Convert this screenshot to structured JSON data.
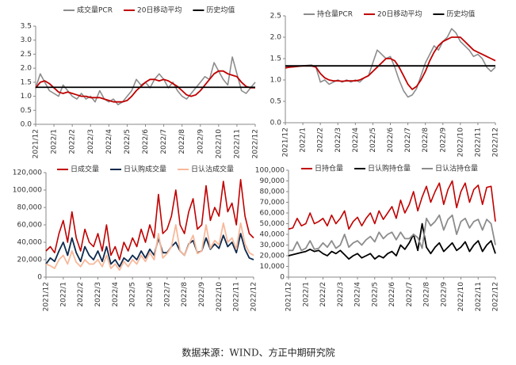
{
  "chart_data": [
    {
      "type": "line",
      "categories": [
        "2021/12",
        null,
        null,
        null,
        "2022/1",
        null,
        null,
        null,
        "2022/2",
        null,
        null,
        null,
        "2022/3",
        null,
        null,
        null,
        "2022/4",
        null,
        null,
        null,
        "2022/5",
        null,
        null,
        null,
        "2022/6",
        null,
        null,
        null,
        "2022/7",
        null,
        null,
        null,
        "2022/8",
        null,
        null,
        null,
        "2022/9",
        null,
        null,
        null,
        "2022/10",
        null,
        null,
        null,
        "2022/11",
        null,
        null,
        null,
        "2022/12"
      ],
      "series": [
        {
          "name": "成交量PCR",
          "color": "#8c8c8c",
          "values": [
            1.3,
            1.8,
            1.5,
            1.2,
            1.1,
            1.0,
            1.4,
            1.2,
            1.0,
            0.9,
            1.1,
            0.9,
            1.0,
            0.8,
            1.2,
            0.9,
            0.8,
            0.9,
            0.7,
            0.8,
            1.0,
            1.2,
            1.6,
            1.4,
            1.5,
            1.3,
            1.6,
            1.8,
            1.6,
            1.3,
            1.5,
            1.2,
            1.0,
            0.9,
            1.1,
            1.3,
            1.5,
            1.7,
            1.6,
            2.2,
            1.9,
            1.6,
            1.4,
            2.4,
            1.8,
            1.2,
            1.1,
            1.3,
            1.5
          ]
        },
        {
          "name": "20日移动平均",
          "color": "#c00000",
          "values": [
            1.3,
            1.5,
            1.55,
            1.45,
            1.3,
            1.15,
            1.1,
            1.15,
            1.1,
            1.05,
            1.0,
            1.0,
            0.95,
            0.95,
            0.95,
            0.9,
            0.85,
            0.8,
            0.8,
            0.8,
            0.85,
            1.0,
            1.2,
            1.35,
            1.5,
            1.6,
            1.6,
            1.55,
            1.6,
            1.55,
            1.45,
            1.35,
            1.2,
            1.05,
            1.0,
            1.05,
            1.2,
            1.4,
            1.6,
            1.8,
            1.9,
            1.9,
            1.8,
            1.75,
            1.7,
            1.5,
            1.35,
            1.3,
            1.3
          ]
        },
        {
          "name": "历史均值",
          "color": "#000000",
          "value": 1.32
        }
      ],
      "ylim": [
        0,
        3.5
      ],
      "yticks": [
        {
          "value": 0,
          "label": "0.0"
        },
        0.5,
        {
          "value": 1,
          "label": "1.0"
        },
        1.5,
        {
          "value": 2,
          "label": "2.0"
        },
        2.5,
        {
          "value": 3,
          "label": "3.0"
        },
        3.5
      ]
    },
    {
      "type": "line",
      "categories": [
        "2021/12",
        null,
        null,
        null,
        "2022/1",
        null,
        null,
        null,
        "2022/2",
        null,
        null,
        null,
        "2022/3",
        null,
        null,
        null,
        "2022/4",
        null,
        null,
        null,
        "2022/5",
        null,
        null,
        null,
        "2022/6",
        null,
        null,
        null,
        "2022/7",
        null,
        null,
        null,
        "2022/8",
        null,
        null,
        null,
        "2022/9",
        null,
        null,
        null,
        "2022/10",
        null,
        null,
        null,
        "2022/11",
        null,
        null,
        null,
        "2022/12"
      ],
      "series": [
        {
          "name": "持仓量PCR",
          "color": "#8c8c8c",
          "values": [
            1.3,
            1.3,
            1.32,
            1.33,
            1.33,
            1.34,
            1.35,
            1.3,
            0.95,
            1.0,
            0.9,
            0.95,
            1.0,
            0.95,
            1.0,
            0.95,
            1.0,
            0.95,
            1.05,
            1.1,
            1.4,
            1.7,
            1.6,
            1.5,
            1.55,
            1.3,
            1.0,
            0.75,
            0.6,
            0.65,
            0.8,
            1.1,
            1.4,
            1.6,
            1.8,
            1.7,
            1.9,
            2.0,
            2.2,
            2.1,
            1.9,
            1.8,
            1.7,
            1.55,
            1.6,
            1.5,
            1.3,
            1.2,
            1.3
          ]
        },
        {
          "name": "20日移动平均",
          "color": "#c00000",
          "values": [
            1.28,
            1.3,
            1.31,
            1.32,
            1.33,
            1.33,
            1.33,
            1.3,
            1.15,
            1.05,
            1.0,
            0.98,
            0.98,
            0.97,
            0.98,
            0.98,
            0.98,
            1.0,
            1.05,
            1.1,
            1.2,
            1.3,
            1.4,
            1.5,
            1.5,
            1.45,
            1.3,
            1.1,
            0.9,
            0.78,
            0.85,
            1.0,
            1.2,
            1.45,
            1.65,
            1.8,
            1.9,
            1.95,
            2.0,
            2.0,
            2.0,
            1.9,
            1.8,
            1.7,
            1.65,
            1.6,
            1.55,
            1.5,
            1.45
          ]
        },
        {
          "name": "历史均值",
          "color": "#000000",
          "value": 1.33
        }
      ],
      "ylim": [
        0,
        2.5
      ],
      "yticks": [
        {
          "value": 0,
          "label": "0.0"
        },
        0.5,
        {
          "value": 1,
          "label": "1.0"
        },
        1.5,
        {
          "value": 2,
          "label": "2.0"
        },
        2.5
      ]
    },
    {
      "type": "line",
      "categories": [
        "2021/12",
        null,
        null,
        null,
        "2022/1",
        null,
        null,
        null,
        "2022/2",
        null,
        null,
        null,
        "2022/3",
        null,
        null,
        null,
        "2022/4",
        null,
        null,
        null,
        "2022/5",
        null,
        null,
        null,
        "2022/6",
        null,
        null,
        null,
        "2022/7",
        null,
        null,
        null,
        "2022/8",
        null,
        null,
        null,
        "2022/9",
        null,
        null,
        null,
        "2022/10",
        null,
        null,
        null,
        "2022/11",
        null,
        null,
        null,
        "2022/12"
      ],
      "series": [
        {
          "name": "日成交量",
          "color": "#c00000",
          "values": [
            30000,
            35000,
            28000,
            50000,
            65000,
            40000,
            75000,
            45000,
            30000,
            55000,
            40000,
            35000,
            50000,
            30000,
            60000,
            25000,
            35000,
            20000,
            40000,
            30000,
            45000,
            35000,
            55000,
            40000,
            60000,
            45000,
            95000,
            50000,
            55000,
            70000,
            100000,
            60000,
            50000,
            75000,
            90000,
            55000,
            60000,
            105000,
            65000,
            80000,
            70000,
            110000,
            75000,
            85000,
            60000,
            112000,
            70000,
            50000,
            45000
          ]
        },
        {
          "name": "日认购成交量",
          "color": "#0d2a4e",
          "values": [
            15000,
            22000,
            18000,
            30000,
            40000,
            25000,
            45000,
            28000,
            18000,
            35000,
            25000,
            20000,
            30000,
            18000,
            35000,
            15000,
            20000,
            12000,
            22000,
            18000,
            25000,
            20000,
            30000,
            22000,
            32000,
            25000,
            45000,
            28000,
            28000,
            35000,
            40000,
            30000,
            25000,
            38000,
            42000,
            28000,
            30000,
            45000,
            32000,
            38000,
            33000,
            48000,
            35000,
            40000,
            28000,
            50000,
            32000,
            22000,
            20000
          ]
        },
        {
          "name": "日认沽成交量",
          "color": "#f8b89a",
          "values": [
            15000,
            13000,
            10000,
            20000,
            25000,
            15000,
            30000,
            17000,
            12000,
            20000,
            15000,
            15000,
            20000,
            12000,
            25000,
            10000,
            15000,
            8000,
            18000,
            12000,
            20000,
            15000,
            25000,
            18000,
            28000,
            20000,
            50000,
            22000,
            27000,
            35000,
            60000,
            30000,
            25000,
            37000,
            48000,
            27000,
            30000,
            60000,
            33000,
            42000,
            37000,
            62000,
            40000,
            45000,
            32000,
            62000,
            38000,
            28000,
            25000
          ]
        }
      ],
      "ylim": [
        0,
        120000
      ],
      "yticks": [
        0,
        {
          "value": 20000,
          "label": "20,000"
        },
        {
          "value": 40000,
          "label": "40,000"
        },
        {
          "value": 60000,
          "label": "60,000"
        },
        {
          "value": 80000,
          "label": "80,000"
        },
        {
          "value": 100000,
          "label": "100,000"
        },
        {
          "value": 120000,
          "label": "120,000"
        }
      ]
    },
    {
      "type": "line",
      "categories": [
        "2021/12",
        null,
        null,
        null,
        "2022/1",
        null,
        null,
        null,
        "2022/2",
        null,
        null,
        null,
        "2022/3",
        null,
        null,
        null,
        "2022/4",
        null,
        null,
        null,
        "2022/5",
        null,
        null,
        null,
        "2022/6",
        null,
        null,
        null,
        "2022/7",
        null,
        null,
        null,
        "2022/8",
        null,
        null,
        null,
        "2022/9",
        null,
        null,
        null,
        "2022/10",
        null,
        null,
        null,
        "2022/11",
        null,
        null,
        null,
        "2022/12"
      ],
      "series": [
        {
          "name": "日持仓量",
          "color": "#c00000",
          "values": [
            45000,
            46000,
            55000,
            48000,
            50000,
            60000,
            50000,
            52000,
            55000,
            48000,
            58000,
            50000,
            55000,
            62000,
            45000,
            52000,
            56000,
            48000,
            55000,
            60000,
            50000,
            62000,
            54000,
            60000,
            66000,
            55000,
            72000,
            60000,
            68000,
            80000,
            62000,
            75000,
            85000,
            70000,
            80000,
            88000,
            68000,
            82000,
            90000,
            65000,
            80000,
            88000,
            70000,
            82000,
            86000,
            68000,
            84000,
            85000,
            52000
          ]
        },
        {
          "name": "日认购持仓量",
          "color": "#000000",
          "values": [
            20000,
            21000,
            22000,
            23000,
            24000,
            26000,
            24000,
            25000,
            22000,
            20000,
            24000,
            22000,
            25000,
            21000,
            17000,
            20000,
            22000,
            18000,
            20000,
            22000,
            17000,
            20000,
            18000,
            22000,
            24000,
            20000,
            30000,
            26000,
            32000,
            40000,
            25000,
            50000,
            28000,
            22000,
            28000,
            32000,
            24000,
            28000,
            32000,
            25000,
            28000,
            33000,
            24000,
            30000,
            34000,
            24000,
            30000,
            34000,
            22000
          ]
        },
        {
          "name": "日认沽持仓量",
          "color": "#8c8c8c",
          "values": [
            25000,
            25000,
            33000,
            25000,
            27000,
            34000,
            26000,
            27000,
            32000,
            28000,
            34000,
            27000,
            30000,
            40000,
            28000,
            32000,
            34000,
            30000,
            35000,
            38000,
            33000,
            42000,
            36000,
            40000,
            42000,
            35000,
            42000,
            36000,
            36000,
            40000,
            37000,
            27000,
            55000,
            48000,
            52000,
            58000,
            44000,
            54000,
            58000,
            40000,
            52000,
            55000,
            46000,
            52000,
            54000,
            44000,
            54000,
            50000,
            30000
          ]
        }
      ],
      "ylim": [
        0,
        100000
      ],
      "yticks": [
        0,
        {
          "value": 10000,
          "label": "10,000"
        },
        {
          "value": 20000,
          "label": "20,000"
        },
        {
          "value": 30000,
          "label": "30,000"
        },
        {
          "value": 40000,
          "label": "40,000"
        },
        {
          "value": 50000,
          "label": "50,000"
        },
        {
          "value": 60000,
          "label": "60,000"
        },
        {
          "value": 70000,
          "label": "70,000"
        },
        {
          "value": 80000,
          "label": "80,000"
        },
        {
          "value": 90000,
          "label": "90,000"
        },
        {
          "value": 100000,
          "label": "100,000"
        }
      ]
    }
  ],
  "source": "数据来源：WIND、方正中期研究院"
}
